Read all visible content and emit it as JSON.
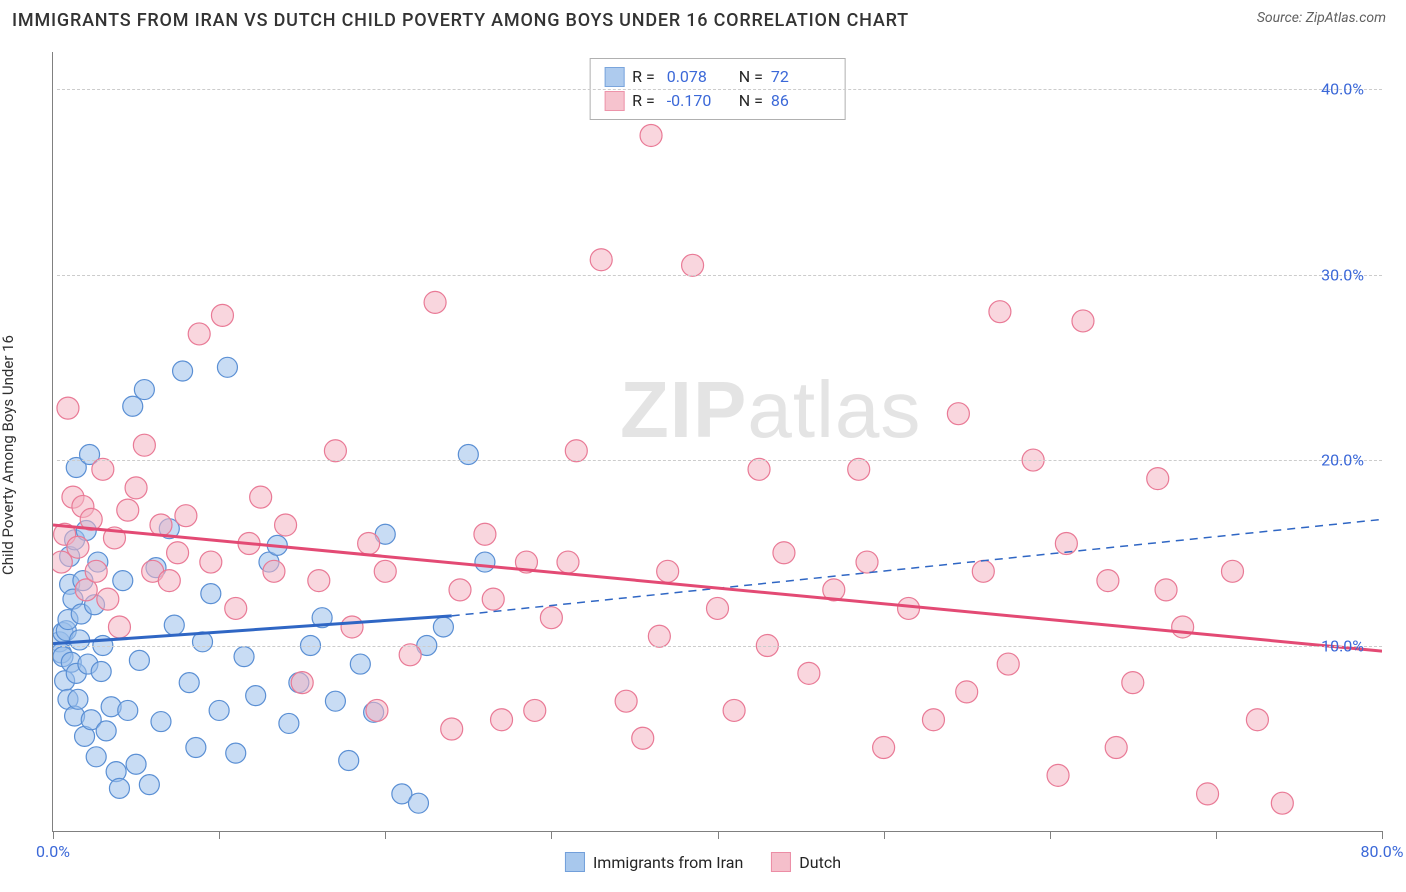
{
  "title": "IMMIGRANTS FROM IRAN VS DUTCH CHILD POVERTY AMONG BOYS UNDER 16 CORRELATION CHART",
  "source": "Source: ZipAtlas.com",
  "watermark_a": "ZIP",
  "watermark_b": "atlas",
  "chart": {
    "type": "scatter-with-regression",
    "ylabel": "Child Poverty Among Boys Under 16",
    "xlim": [
      0,
      80
    ],
    "ylim": [
      0,
      42
    ],
    "ytick_values": [
      10,
      20,
      30,
      40
    ],
    "ytick_labels": [
      "10.0%",
      "20.0%",
      "30.0%",
      "40.0%"
    ],
    "xtick_values": [
      0,
      10,
      20,
      30,
      40,
      50,
      60,
      70,
      80
    ],
    "xtick_labels": {
      "first": "0.0%",
      "last": "80.0%"
    },
    "grid_color": "#cccccc",
    "background_color": "#ffffff",
    "axis_color": "#808080",
    "label_color": "#3b68d8",
    "series": [
      {
        "name": "Immigrants from Iran",
        "label": "Immigrants from Iran",
        "R": "0.078",
        "N": "72",
        "fill": "#9abfeb",
        "fill_opacity": 0.55,
        "stroke": "#5a8fd4",
        "line_color": "#2f66c4",
        "regression": {
          "x1": 0,
          "y1": 10.1,
          "x2_solid": 24,
          "y2_solid": 11.6,
          "x2": 80,
          "y2": 16.8
        },
        "radius": 10,
        "points": [
          [
            0.4,
            10.2
          ],
          [
            0.5,
            9.6
          ],
          [
            0.6,
            10.7
          ],
          [
            0.6,
            9.4
          ],
          [
            0.7,
            8.1
          ],
          [
            0.8,
            10.8
          ],
          [
            0.9,
            11.4
          ],
          [
            0.9,
            7.1
          ],
          [
            1.0,
            13.3
          ],
          [
            1.0,
            14.8
          ],
          [
            1.1,
            9.1
          ],
          [
            1.2,
            12.5
          ],
          [
            1.3,
            6.2
          ],
          [
            1.3,
            15.7
          ],
          [
            1.4,
            19.6
          ],
          [
            1.4,
            8.5
          ],
          [
            1.5,
            7.1
          ],
          [
            1.6,
            10.3
          ],
          [
            1.7,
            11.7
          ],
          [
            1.8,
            13.5
          ],
          [
            1.9,
            5.1
          ],
          [
            2.0,
            16.2
          ],
          [
            2.1,
            9.0
          ],
          [
            2.2,
            20.3
          ],
          [
            2.3,
            6.0
          ],
          [
            2.5,
            12.2
          ],
          [
            2.6,
            4.0
          ],
          [
            2.7,
            14.5
          ],
          [
            2.9,
            8.6
          ],
          [
            3.0,
            10.0
          ],
          [
            3.2,
            5.4
          ],
          [
            3.5,
            6.7
          ],
          [
            3.8,
            3.2
          ],
          [
            4.0,
            2.3
          ],
          [
            4.2,
            13.5
          ],
          [
            4.5,
            6.5
          ],
          [
            4.8,
            22.9
          ],
          [
            5.0,
            3.6
          ],
          [
            5.2,
            9.2
          ],
          [
            5.5,
            23.8
          ],
          [
            5.8,
            2.5
          ],
          [
            6.2,
            14.2
          ],
          [
            6.5,
            5.9
          ],
          [
            7.0,
            16.3
          ],
          [
            7.3,
            11.1
          ],
          [
            7.8,
            24.8
          ],
          [
            8.2,
            8.0
          ],
          [
            8.6,
            4.5
          ],
          [
            9.0,
            10.2
          ],
          [
            9.5,
            12.8
          ],
          [
            10.0,
            6.5
          ],
          [
            10.5,
            25.0
          ],
          [
            11.0,
            4.2
          ],
          [
            11.5,
            9.4
          ],
          [
            12.2,
            7.3
          ],
          [
            13.0,
            14.5
          ],
          [
            13.5,
            15.4
          ],
          [
            14.2,
            5.8
          ],
          [
            14.8,
            8.0
          ],
          [
            15.5,
            10.0
          ],
          [
            16.2,
            11.5
          ],
          [
            17.0,
            7.0
          ],
          [
            17.8,
            3.8
          ],
          [
            18.5,
            9.0
          ],
          [
            19.3,
            6.4
          ],
          [
            20.0,
            16.0
          ],
          [
            21.0,
            2.0
          ],
          [
            22.5,
            10.0
          ],
          [
            25.0,
            20.3
          ],
          [
            26.0,
            14.5
          ],
          [
            22.0,
            1.5
          ],
          [
            23.5,
            11.0
          ]
        ]
      },
      {
        "name": "Dutch",
        "label": "Dutch",
        "R": "-0.170",
        "N": "86",
        "fill": "#f4b5c3",
        "fill_opacity": 0.55,
        "stroke": "#e97a96",
        "line_color": "#e34a74",
        "regression": {
          "x1": 0,
          "y1": 16.5,
          "x2_solid": 80,
          "y2_solid": 9.7,
          "x2": 80,
          "y2": 9.7
        },
        "radius": 11,
        "points": [
          [
            0.5,
            14.5
          ],
          [
            0.7,
            16.0
          ],
          [
            0.9,
            22.8
          ],
          [
            1.2,
            18.0
          ],
          [
            1.5,
            15.3
          ],
          [
            1.8,
            17.5
          ],
          [
            2.0,
            13.0
          ],
          [
            2.3,
            16.8
          ],
          [
            2.6,
            14.0
          ],
          [
            3.0,
            19.5
          ],
          [
            3.3,
            12.5
          ],
          [
            3.7,
            15.8
          ],
          [
            4.0,
            11.0
          ],
          [
            4.5,
            17.3
          ],
          [
            5.0,
            18.5
          ],
          [
            5.5,
            20.8
          ],
          [
            6.0,
            14.0
          ],
          [
            6.5,
            16.5
          ],
          [
            7.0,
            13.5
          ],
          [
            7.5,
            15.0
          ],
          [
            8.0,
            17.0
          ],
          [
            8.8,
            26.8
          ],
          [
            9.5,
            14.5
          ],
          [
            10.2,
            27.8
          ],
          [
            11.0,
            12.0
          ],
          [
            11.8,
            15.5
          ],
          [
            12.5,
            18.0
          ],
          [
            13.3,
            14.0
          ],
          [
            14.0,
            16.5
          ],
          [
            15.0,
            8.0
          ],
          [
            16.0,
            13.5
          ],
          [
            17.0,
            20.5
          ],
          [
            18.0,
            11.0
          ],
          [
            19.0,
            15.5
          ],
          [
            20.0,
            14.0
          ],
          [
            21.5,
            9.5
          ],
          [
            23.0,
            28.5
          ],
          [
            24.5,
            13.0
          ],
          [
            26.0,
            16.0
          ],
          [
            27.0,
            6.0
          ],
          [
            28.5,
            14.5
          ],
          [
            30.0,
            11.5
          ],
          [
            31.5,
            20.5
          ],
          [
            33.0,
            30.8
          ],
          [
            34.5,
            7.0
          ],
          [
            35.5,
            5.0
          ],
          [
            36.0,
            37.5
          ],
          [
            37.0,
            14.0
          ],
          [
            38.5,
            30.5
          ],
          [
            40.0,
            12.0
          ],
          [
            41.0,
            6.5
          ],
          [
            42.5,
            19.5
          ],
          [
            44.0,
            15.0
          ],
          [
            45.5,
            8.5
          ],
          [
            47.0,
            13.0
          ],
          [
            48.5,
            19.5
          ],
          [
            50.0,
            4.5
          ],
          [
            51.5,
            12.0
          ],
          [
            53.0,
            6.0
          ],
          [
            54.5,
            22.5
          ],
          [
            56.0,
            14.0
          ],
          [
            57.5,
            9.0
          ],
          [
            59.0,
            20.0
          ],
          [
            60.5,
            3.0
          ],
          [
            62.0,
            27.5
          ],
          [
            63.5,
            13.5
          ],
          [
            65.0,
            8.0
          ],
          [
            66.5,
            19.0
          ],
          [
            68.0,
            11.0
          ],
          [
            69.5,
            2.0
          ],
          [
            71.0,
            14.0
          ],
          [
            72.5,
            6.0
          ],
          [
            74.0,
            1.5
          ],
          [
            57.0,
            28.0
          ],
          [
            24.0,
            5.5
          ],
          [
            19.5,
            6.5
          ],
          [
            31.0,
            14.5
          ],
          [
            36.5,
            10.5
          ],
          [
            29.0,
            6.5
          ],
          [
            26.5,
            12.5
          ],
          [
            43.0,
            10.0
          ],
          [
            49.0,
            14.5
          ],
          [
            55.0,
            7.5
          ],
          [
            61.0,
            15.5
          ],
          [
            64.0,
            4.5
          ],
          [
            67.0,
            13.0
          ]
        ]
      }
    ]
  }
}
